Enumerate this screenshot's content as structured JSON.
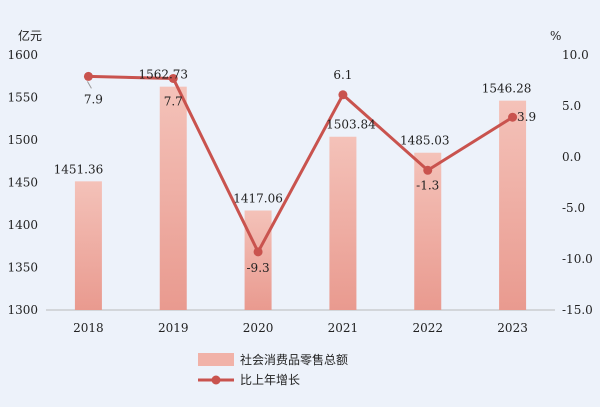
{
  "chart_data": {
    "type": "bar+line",
    "categories": [
      "2018",
      "2019",
      "2020",
      "2021",
      "2022",
      "2023"
    ],
    "series": [
      {
        "name": "社会消费品零售总额",
        "type": "bar",
        "axis": "left",
        "values": [
          1451.36,
          1562.73,
          1417.06,
          1503.84,
          1485.03,
          1546.28
        ],
        "labels": [
          "1451.36",
          "1562.73",
          "1417.06",
          "1503.84",
          "1485.03",
          "1546.28"
        ],
        "color": "#f1b2a8"
      },
      {
        "name": "比上年增长",
        "type": "line",
        "axis": "right",
        "values": [
          7.9,
          7.7,
          -9.3,
          6.1,
          -1.3,
          3.9
        ],
        "labels": [
          "7.9",
          "7.7",
          "-9.3",
          "6.1",
          "-1.3",
          "3.9"
        ],
        "color": "#c9534e"
      }
    ],
    "left_axis": {
      "unit": "亿元",
      "ylim": [
        1300,
        1600
      ],
      "ticks": [
        1300,
        1350,
        1400,
        1450,
        1500,
        1550,
        1600
      ]
    },
    "right_axis": {
      "unit": "%",
      "ylim": [
        -15,
        10
      ],
      "ticks": [
        "-15.0",
        "-10.0",
        "-5.0",
        "0.0",
        "5.0",
        "10.0"
      ]
    },
    "grid": false,
    "legend_position": "bottom-center"
  }
}
